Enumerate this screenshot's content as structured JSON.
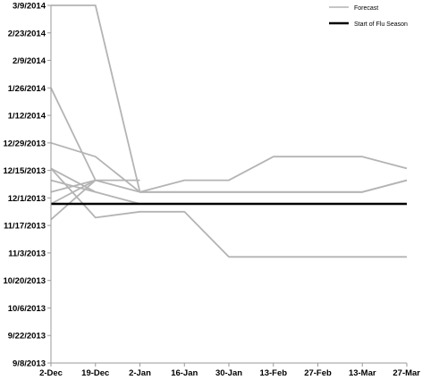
{
  "chart_data": {
    "type": "line",
    "x_ticks": [
      "2-Dec",
      "19-Dec",
      "2-Jan",
      "16-Jan",
      "30-Jan",
      "13-Feb",
      "27-Feb",
      "13-Mar",
      "27-Mar"
    ],
    "y_ticks": [
      "9/8/2013",
      "9/22/2013",
      "10/6/2013",
      "10/20/2013",
      "11/3/2013",
      "11/17/2013",
      "12/1/2013",
      "12/15/2013",
      "12/29/2013",
      "1/12/2014",
      "1/26/2014",
      "2/9/2014",
      "2/23/2014",
      "3/9/2014"
    ],
    "forecast_lines": [
      {
        "points": [
          [
            "2-Dec",
            "3/9/2014"
          ],
          [
            "19-Dec",
            "3/9/2014"
          ],
          [
            "2-Jan",
            "12/4/2013"
          ],
          [
            "16-Jan",
            "12/4/2013"
          ],
          [
            "30-Jan",
            "12/4/2013"
          ],
          [
            "13-Feb",
            "12/4/2013"
          ],
          [
            "27-Feb",
            "12/4/2013"
          ],
          [
            "13-Mar",
            "12/4/2013"
          ],
          [
            "27-Mar",
            "12/10/2013"
          ]
        ]
      },
      {
        "points": [
          [
            "2-Dec",
            "1/26/2014"
          ],
          [
            "19-Dec",
            "12/10/2013"
          ],
          [
            "2-Jan",
            "12/4/2013"
          ],
          [
            "16-Jan",
            "12/4/2013"
          ],
          [
            "30-Jan",
            "12/4/2013"
          ],
          [
            "13-Feb",
            "12/4/2013"
          ],
          [
            "27-Feb",
            "12/4/2013"
          ],
          [
            "13-Mar",
            "12/4/2013"
          ],
          [
            "27-Mar",
            "12/10/2013"
          ]
        ]
      },
      {
        "points": [
          [
            "2-Dec",
            "12/29/2013"
          ],
          [
            "19-Dec",
            "12/22/2013"
          ],
          [
            "2-Jan",
            "12/4/2013"
          ],
          [
            "16-Jan",
            "12/10/2013"
          ],
          [
            "30-Jan",
            "12/10/2013"
          ],
          [
            "13-Feb",
            "12/22/2013"
          ],
          [
            "27-Feb",
            "12/22/2013"
          ],
          [
            "13-Mar",
            "12/22/2013"
          ],
          [
            "27-Mar",
            "12/16/2013"
          ]
        ]
      },
      {
        "points": [
          [
            "2-Dec",
            "12/16/2013"
          ],
          [
            "19-Dec",
            "12/4/2013"
          ],
          [
            "2-Jan",
            "11/28/2013"
          ],
          [
            "16-Jan",
            "11/28/2013"
          ]
        ]
      },
      {
        "points": [
          [
            "2-Dec",
            "12/16/2013"
          ],
          [
            "19-Dec",
            "11/21/2013"
          ],
          [
            "2-Jan",
            "11/24/2013"
          ],
          [
            "16-Jan",
            "11/24/2013"
          ],
          [
            "30-Jan",
            "11/1/2013"
          ],
          [
            "13-Feb",
            "11/1/2013"
          ],
          [
            "27-Feb",
            "11/1/2013"
          ],
          [
            "13-Mar",
            "11/1/2013"
          ],
          [
            "27-Mar",
            "11/1/2013"
          ]
        ]
      },
      {
        "points": [
          [
            "2-Dec",
            "12/10/2013"
          ],
          [
            "19-Dec",
            "12/4/2013"
          ]
        ]
      },
      {
        "points": [
          [
            "2-Dec",
            "12/4/2013"
          ],
          [
            "19-Dec",
            "12/10/2013"
          ],
          [
            "2-Jan",
            "12/10/2013"
          ]
        ]
      },
      {
        "points": [
          [
            "2-Dec",
            "11/28/2013"
          ],
          [
            "19-Dec",
            "12/10/2013"
          ]
        ]
      },
      {
        "points": [
          [
            "2-Dec",
            "11/20/2013"
          ],
          [
            "19-Dec",
            "12/10/2013"
          ]
        ]
      }
    ],
    "flu_season_start": "11/28/2013",
    "legend": [
      {
        "label": "Forecast",
        "color": "#b4b4b4"
      },
      {
        "label": "Start of Flu Season",
        "color": "#000000"
      }
    ],
    "legend_position": "top-right",
    "grid": false
  }
}
